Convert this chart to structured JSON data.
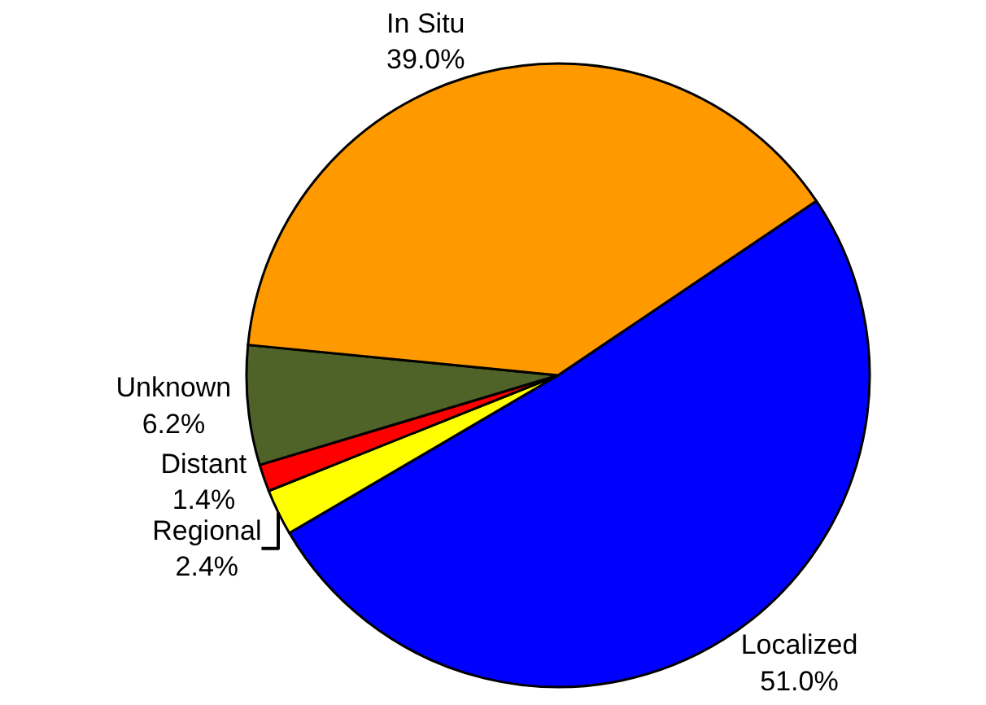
{
  "chart_data": {
    "type": "pie",
    "categories": [
      "Localized",
      "Regional",
      "Distant",
      "Unknown",
      "In Situ"
    ],
    "values": [
      51.0,
      2.4,
      1.4,
      6.2,
      39.0
    ],
    "value_labels": [
      "51.0%",
      "2.4%",
      "1.4%",
      "6.2%",
      "39.0%"
    ],
    "colors": [
      "#0000ff",
      "#ffff00",
      "#ff0000",
      "#4f6228",
      "#ff9900"
    ],
    "legend": false
  }
}
